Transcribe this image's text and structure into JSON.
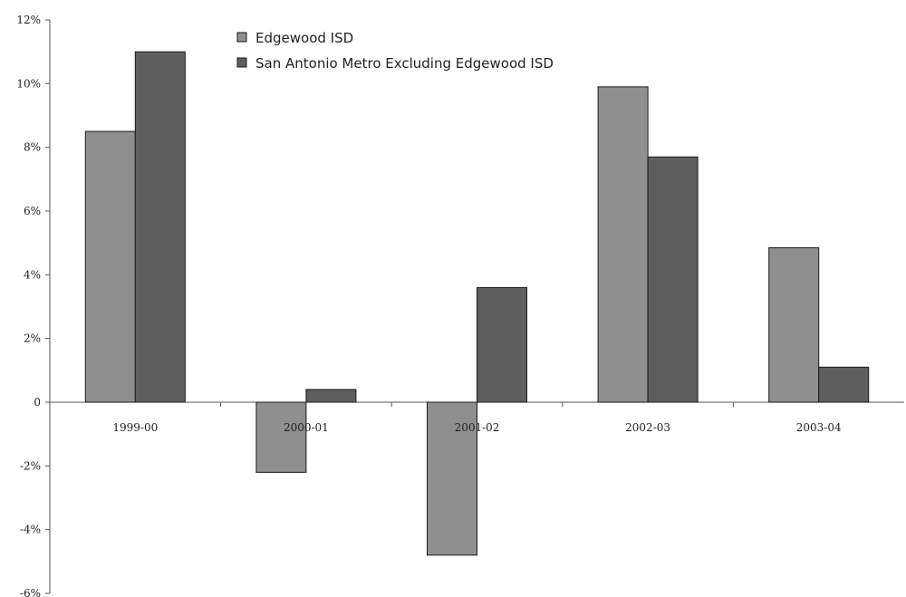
{
  "chart_data": {
    "type": "bar",
    "title": "",
    "xlabel": "",
    "ylabel": "",
    "categories": [
      "1999-00",
      "2000-01",
      "2001-02",
      "2002-03",
      "2003-04"
    ],
    "series": [
      {
        "name": "Edgewood ISD",
        "values": [
          8.5,
          -2.2,
          -4.8,
          9.9,
          4.85
        ],
        "color": "#8f8f8f"
      },
      {
        "name": "San Antonio Metro Excluding Edgewood ISD",
        "values": [
          11.0,
          0.4,
          3.6,
          7.7,
          1.1
        ],
        "color": "#5e5e5e"
      }
    ],
    "ylim": [
      -6,
      12
    ],
    "yticks": [
      -6,
      -4,
      -2,
      0,
      2,
      4,
      6,
      8,
      10,
      12
    ],
    "ytick_labels": [
      "-6%",
      "-4%",
      "-2%",
      "0",
      "2%",
      "4%",
      "6%",
      "8%",
      "10%",
      "12%"
    ],
    "legend_position": "top-center",
    "grid": false
  }
}
